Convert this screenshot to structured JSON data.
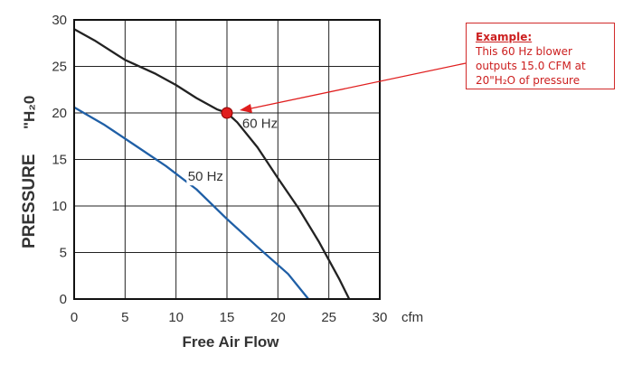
{
  "chart_data": {
    "type": "line",
    "xlabel": "Free Air Flow",
    "x_unit": "cfm",
    "ylabel_main": "PRESSURE",
    "ylabel_unit": "\"H₂0",
    "xlim": [
      0,
      30
    ],
    "ylim": [
      0,
      30
    ],
    "xticks": [
      "0",
      "5",
      "10",
      "15",
      "20",
      "25",
      "30"
    ],
    "yticks": [
      "0",
      "5",
      "10",
      "15",
      "20",
      "25",
      "30"
    ],
    "grid": true,
    "series": [
      {
        "name": "60 Hz",
        "color": "#222222",
        "x": [
          0,
          2,
          5,
          8,
          10,
          12,
          14,
          15,
          16,
          18,
          20,
          22,
          24,
          26,
          27
        ],
        "y": [
          29,
          27.8,
          25.7,
          24.2,
          23,
          21.6,
          20.4,
          20,
          19,
          16.3,
          13,
          9.8,
          6.2,
          2.2,
          0
        ]
      },
      {
        "name": "50 Hz",
        "color": "#1f5fa6",
        "x": [
          0,
          3,
          6,
          9,
          12,
          15,
          18,
          21,
          23
        ],
        "y": [
          20.6,
          18.7,
          16.5,
          14.3,
          11.8,
          8.6,
          5.6,
          2.7,
          0
        ]
      }
    ],
    "highlight_point": {
      "x": 15,
      "y": 20,
      "color": "#e01e1e"
    }
  },
  "annotation": {
    "heading": "Example:",
    "text": "This 60 Hz blower outputs 15.0 CFM at 20\"H₂O of pressure"
  }
}
